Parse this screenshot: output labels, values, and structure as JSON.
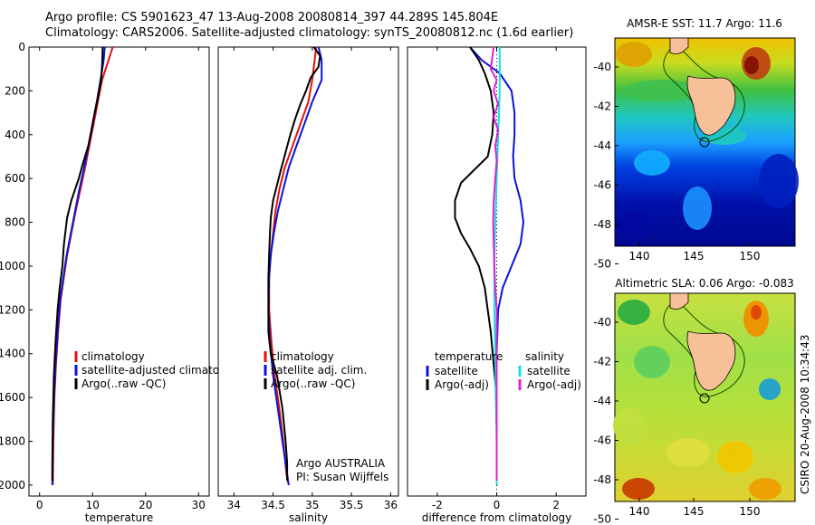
{
  "header": {
    "line1": "Argo profile: CS 5901623_47 13-Aug-2008 20080814_397 44.289S 145.804E",
    "line2": "Climatology: CARS2006. Satellite-adjusted climatology: synTS_20080812.nc (1.6d earlier)"
  },
  "colors": {
    "climatology": "#e01010",
    "satellite": "#0a14d8",
    "argo": "#000000",
    "salinity_sat": "#10e0e8",
    "salinity_argo": "#e020d0"
  },
  "chart_data": [
    {
      "type": "line",
      "id": "temperature",
      "xlabel": "temperature",
      "ylabel": "",
      "xlim": [
        -2,
        32
      ],
      "ylim": [
        2050,
        0
      ],
      "xticks": [
        0,
        10,
        20,
        30
      ],
      "yticks": [
        0,
        200,
        400,
        600,
        800,
        1000,
        1200,
        1400,
        1600,
        1800,
        2000
      ],
      "legend": {
        "placement": "center-right",
        "entries": [
          "climatology",
          "satellite-adjusted climatology",
          "Argo(..raw -QC)"
        ]
      },
      "series": [
        {
          "name": "climatology",
          "color": "#e01010",
          "points": [
            [
              13.8,
              0
            ],
            [
              13.0,
              60
            ],
            [
              11.8,
              150
            ],
            [
              11.0,
              250
            ],
            [
              10.2,
              350
            ],
            [
              9.4,
              450
            ],
            [
              8.6,
              550
            ],
            [
              7.7,
              650
            ],
            [
              6.8,
              750
            ],
            [
              6.0,
              850
            ],
            [
              5.2,
              950
            ],
            [
              4.6,
              1050
            ],
            [
              4.0,
              1150
            ],
            [
              3.5,
              1300
            ],
            [
              3.1,
              1450
            ],
            [
              2.8,
              1600
            ],
            [
              2.6,
              1800
            ],
            [
              2.5,
              2000
            ]
          ]
        },
        {
          "name": "satellite-adjusted climatology",
          "color": "#0a14d8",
          "points": [
            [
              12.3,
              0
            ],
            [
              12.1,
              60
            ],
            [
              11.5,
              150
            ],
            [
              10.8,
              250
            ],
            [
              10.0,
              350
            ],
            [
              9.2,
              450
            ],
            [
              8.4,
              550
            ],
            [
              7.5,
              650
            ],
            [
              6.7,
              750
            ],
            [
              5.9,
              850
            ],
            [
              5.1,
              950
            ],
            [
              4.5,
              1050
            ],
            [
              3.9,
              1150
            ],
            [
              3.4,
              1300
            ],
            [
              3.0,
              1450
            ],
            [
              2.7,
              1600
            ],
            [
              2.5,
              1800
            ],
            [
              2.4,
              2000
            ]
          ]
        },
        {
          "name": "Argo(..raw -QC)",
          "color": "#000000",
          "points": [
            [
              11.9,
              0
            ],
            [
              11.8,
              80
            ],
            [
              11.6,
              150
            ],
            [
              11.0,
              230
            ],
            [
              10.4,
              300
            ],
            [
              9.8,
              380
            ],
            [
              9.2,
              450
            ],
            [
              8.2,
              530
            ],
            [
              7.4,
              600
            ],
            [
              6.0,
              700
            ],
            [
              5.2,
              780
            ],
            [
              4.6,
              900
            ],
            [
              4.3,
              1000
            ],
            [
              3.8,
              1100
            ],
            [
              3.4,
              1200
            ],
            [
              3.0,
              1350
            ],
            [
              2.7,
              1500
            ],
            [
              2.5,
              1700
            ],
            [
              2.4,
              1900
            ],
            [
              2.4,
              1980
            ]
          ]
        }
      ]
    },
    {
      "type": "line",
      "id": "salinity",
      "xlabel": "salinity",
      "ylabel": "",
      "xlim": [
        33.8,
        36.1
      ],
      "ylim": [
        2050,
        0
      ],
      "xticks": [
        34,
        34.5,
        35,
        35.5,
        36
      ],
      "yticks": [],
      "legend": {
        "placement": "center-right",
        "entries": [
          "climatology",
          "satellite adj. clim.",
          "Argo(..raw -QC)"
        ]
      },
      "annotation": {
        "line1": "Argo AUSTRALIA",
        "line2": "PI: Susan Wijffels"
      },
      "series": [
        {
          "name": "climatology",
          "color": "#e01010",
          "points": [
            [
              35.05,
              0
            ],
            [
              35.0,
              150
            ],
            [
              34.95,
              250
            ],
            [
              34.85,
              350
            ],
            [
              34.75,
              450
            ],
            [
              34.65,
              550
            ],
            [
              34.58,
              650
            ],
            [
              34.53,
              750
            ],
            [
              34.5,
              850
            ],
            [
              34.47,
              950
            ],
            [
              34.45,
              1050
            ],
            [
              34.45,
              1200
            ],
            [
              34.48,
              1350
            ],
            [
              34.52,
              1500
            ],
            [
              34.58,
              1650
            ],
            [
              34.63,
              1800
            ],
            [
              34.67,
              1950
            ],
            [
              34.7,
              2000
            ]
          ]
        },
        {
          "name": "satellite adj. clim.",
          "color": "#0a14d8",
          "points": [
            [
              35.08,
              0
            ],
            [
              35.12,
              60
            ],
            [
              35.12,
              150
            ],
            [
              35.0,
              250
            ],
            [
              34.9,
              350
            ],
            [
              34.8,
              450
            ],
            [
              34.7,
              550
            ],
            [
              34.63,
              650
            ],
            [
              34.56,
              750
            ],
            [
              34.51,
              850
            ],
            [
              34.47,
              950
            ],
            [
              34.45,
              1050
            ],
            [
              34.44,
              1200
            ],
            [
              34.46,
              1350
            ],
            [
              34.5,
              1500
            ],
            [
              34.56,
              1650
            ],
            [
              34.62,
              1800
            ],
            [
              34.68,
              1950
            ],
            [
              34.7,
              2000
            ]
          ]
        },
        {
          "name": "Argo(..raw -QC)",
          "color": "#000000",
          "points": [
            [
              35.02,
              0
            ],
            [
              35.1,
              40
            ],
            [
              35.08,
              90
            ],
            [
              34.98,
              140
            ],
            [
              34.92,
              200
            ],
            [
              34.85,
              260
            ],
            [
              34.78,
              330
            ],
            [
              34.72,
              400
            ],
            [
              34.66,
              480
            ],
            [
              34.6,
              560
            ],
            [
              34.55,
              630
            ],
            [
              34.5,
              700
            ],
            [
              34.47,
              780
            ],
            [
              34.46,
              850
            ],
            [
              34.45,
              950
            ],
            [
              34.44,
              1050
            ],
            [
              34.44,
              1150
            ],
            [
              34.44,
              1300
            ],
            [
              34.47,
              1400
            ],
            [
              34.55,
              1500
            ],
            [
              34.62,
              1650
            ],
            [
              34.66,
              1800
            ],
            [
              34.68,
              1900
            ],
            [
              34.68,
              1980
            ]
          ]
        }
      ]
    },
    {
      "type": "line",
      "id": "difference",
      "xlabel": "difference from climatology",
      "ylabel": "",
      "xlim": [
        -3,
        3
      ],
      "ylim": [
        2050,
        0
      ],
      "xticks": [
        -2,
        0,
        2
      ],
      "yticks": [],
      "legend": {
        "placement": "bottom",
        "col1_header": "temperature",
        "col2_header": "salinity",
        "entries": [
          "satellite",
          "Argo(-adj)",
          "satellite",
          "Argo(-adj)"
        ]
      },
      "series": [
        {
          "name": "satellite",
          "group": "temperature",
          "color": "#0a14d8",
          "points": [
            [
              -0.9,
              0
            ],
            [
              -0.5,
              60
            ],
            [
              0.1,
              120
            ],
            [
              0.5,
              200
            ],
            [
              0.6,
              300
            ],
            [
              0.6,
              400
            ],
            [
              0.55,
              500
            ],
            [
              0.6,
              600
            ],
            [
              0.8,
              700
            ],
            [
              0.9,
              800
            ],
            [
              0.8,
              900
            ],
            [
              0.5,
              1000
            ],
            [
              0.2,
              1100
            ],
            [
              0.05,
              1200
            ],
            [
              0.0,
              1400
            ],
            [
              0.0,
              1700
            ],
            [
              0.0,
              2000
            ]
          ]
        },
        {
          "name": "Argo(-adj)",
          "group": "temperature",
          "color": "#000000",
          "points": [
            [
              -0.9,
              0
            ],
            [
              -0.6,
              60
            ],
            [
              -0.4,
              120
            ],
            [
              -0.2,
              200
            ],
            [
              -0.1,
              300
            ],
            [
              -0.15,
              400
            ],
            [
              -0.3,
              500
            ],
            [
              -1.2,
              620
            ],
            [
              -1.4,
              700
            ],
            [
              -1.4,
              780
            ],
            [
              -1.2,
              850
            ],
            [
              -0.9,
              920
            ],
            [
              -0.6,
              1000
            ],
            [
              -0.4,
              1100
            ],
            [
              -0.3,
              1200
            ],
            [
              -0.2,
              1300
            ],
            [
              -0.1,
              1450
            ],
            [
              0.0,
              1600
            ],
            [
              0.0,
              1800
            ],
            [
              0.0,
              1980
            ]
          ]
        },
        {
          "name": "satellite",
          "group": "salinity",
          "color": "#10e0e8",
          "points": [
            [
              0.1,
              0
            ],
            [
              0.1,
              200
            ],
            [
              0.05,
              400
            ],
            [
              0.0,
              600
            ],
            [
              -0.05,
              800
            ],
            [
              -0.08,
              1000
            ],
            [
              -0.08,
              1200
            ],
            [
              -0.05,
              1400
            ],
            [
              -0.03,
              1600
            ],
            [
              0.0,
              1800
            ],
            [
              0.0,
              2000
            ]
          ]
        },
        {
          "name": "Argo(-adj)",
          "group": "salinity",
          "color": "#e020d0",
          "points": [
            [
              -0.1,
              0
            ],
            [
              -0.2,
              100
            ],
            [
              0.0,
              150
            ],
            [
              -0.1,
              200
            ],
            [
              0.05,
              260
            ],
            [
              -0.1,
              320
            ],
            [
              0.05,
              380
            ],
            [
              -0.05,
              450
            ],
            [
              0.0,
              520
            ],
            [
              -0.05,
              600
            ],
            [
              -0.1,
              700
            ],
            [
              -0.12,
              800
            ],
            [
              -0.1,
              900
            ],
            [
              -0.08,
              1000
            ],
            [
              -0.05,
              1100
            ],
            [
              0.0,
              1200
            ],
            [
              0.0,
              1400
            ],
            [
              0.0,
              1600
            ],
            [
              0.0,
              1800
            ],
            [
              0.0,
              1980
            ]
          ]
        }
      ]
    }
  ],
  "maps": [
    {
      "id": "sst-map",
      "title": "AMSR-E SST: 11.7 Argo: 11.6",
      "xticks": [
        "140",
        "145",
        "150"
      ],
      "yticks": [
        "-40",
        "-42",
        "-44",
        "-46",
        "-48",
        "-50"
      ],
      "float_position": [
        145.804,
        -44.289
      ]
    },
    {
      "id": "sla-map",
      "title": "Altimetric SLA: 0.06 Argo: -0.083",
      "xticks": [
        "140",
        "145",
        "150"
      ],
      "yticks": [
        "-40",
        "-42",
        "-44",
        "-46",
        "-48",
        "-50"
      ],
      "float_position": [
        145.804,
        -44.289
      ]
    }
  ],
  "credit": "CSIRO 20-Aug-2008 10:34:43"
}
